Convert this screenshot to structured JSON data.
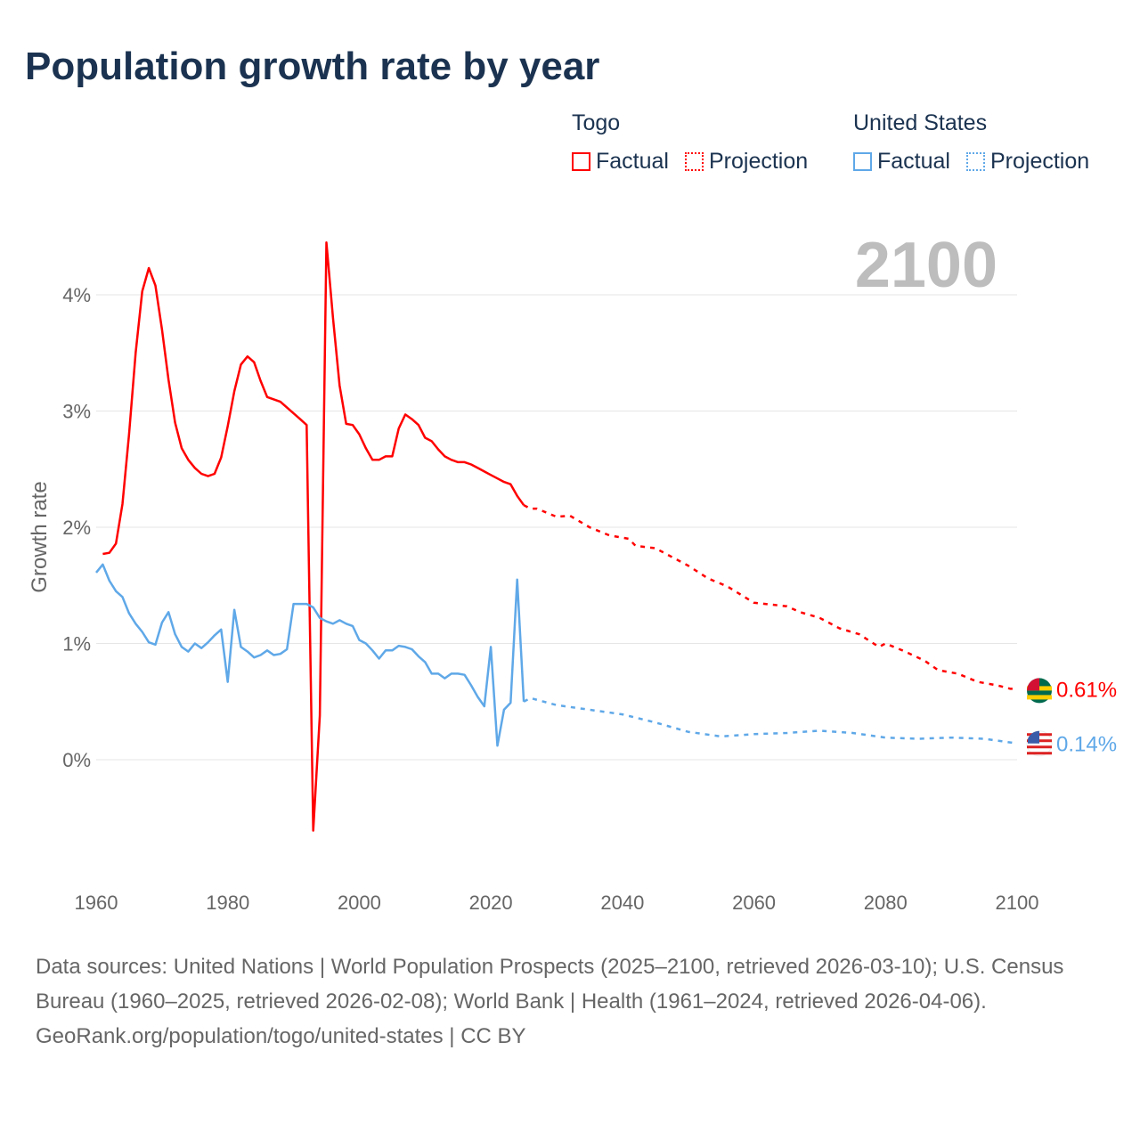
{
  "title": "Population growth rate by year",
  "legend": {
    "groups": [
      {
        "name": "Togo",
        "color": "#ff0000",
        "factual": "Factual",
        "projection": "Projection"
      },
      {
        "name": "United States",
        "color": "#5fa8e8",
        "factual": "Factual",
        "projection": "Projection"
      }
    ]
  },
  "chart_data": {
    "type": "line",
    "title": "Population growth rate by year",
    "xlabel": "",
    "ylabel": "Growth rate",
    "xlim": [
      1960,
      2100
    ],
    "ylim": [
      -1,
      4.5
    ],
    "x_ticks": [
      "1960",
      "1980",
      "2000",
      "2020",
      "2040",
      "2060",
      "2080",
      "2100"
    ],
    "y_ticks": [
      {
        "v": 0,
        "label": "0%"
      },
      {
        "v": 1,
        "label": "1%"
      },
      {
        "v": 2,
        "label": "2%"
      },
      {
        "v": 3,
        "label": "3%"
      },
      {
        "v": 4,
        "label": "4%"
      }
    ],
    "grid": true,
    "current_year_label": "2100",
    "series": [
      {
        "name": "Togo Factual",
        "color": "#ff0000",
        "dashed": false,
        "x": [
          1961,
          1962,
          1963,
          1964,
          1965,
          1966,
          1967,
          1968,
          1969,
          1970,
          1971,
          1972,
          1973,
          1974,
          1975,
          1976,
          1977,
          1978,
          1979,
          1980,
          1981,
          1982,
          1983,
          1984,
          1985,
          1986,
          1987,
          1988,
          1989,
          1990,
          1991,
          1992,
          1993,
          1994,
          1995,
          1996,
          1997,
          1998,
          1999,
          2000,
          2001,
          2002,
          2003,
          2004,
          2005,
          2006,
          2007,
          2008,
          2009,
          2010,
          2011,
          2012,
          2013,
          2014,
          2015,
          2016,
          2017,
          2018,
          2019,
          2020,
          2021,
          2022,
          2023,
          2024,
          2025
        ],
        "y": [
          1.77,
          1.78,
          1.86,
          2.2,
          2.8,
          3.5,
          4.03,
          4.23,
          4.08,
          3.7,
          3.27,
          2.9,
          2.68,
          2.58,
          2.51,
          2.46,
          2.44,
          2.46,
          2.6,
          2.87,
          3.17,
          3.4,
          3.47,
          3.42,
          3.26,
          3.12,
          3.1,
          3.08,
          3.03,
          2.98,
          2.93,
          2.88,
          -0.61,
          0.38,
          4.45,
          3.8,
          3.22,
          2.89,
          2.88,
          2.8,
          2.68,
          2.58,
          2.58,
          2.61,
          2.61,
          2.85,
          2.97,
          2.93,
          2.88,
          2.77,
          2.74,
          2.67,
          2.61,
          2.58,
          2.56,
          2.56,
          2.54,
          2.51,
          2.48,
          2.45,
          2.42,
          2.39,
          2.37,
          2.27,
          2.19
        ]
      },
      {
        "name": "Togo Projection",
        "color": "#ff0000",
        "dashed": true,
        "x": [
          2025,
          2026,
          2027,
          2030,
          2032,
          2035,
          2038,
          2041,
          2042,
          2045,
          2050,
          2053,
          2056,
          2060,
          2065,
          2067,
          2070,
          2073,
          2076,
          2079,
          2080,
          2083,
          2086,
          2088,
          2091,
          2094,
          2097,
          2099,
          2100
        ],
        "y": [
          2.19,
          2.16,
          2.16,
          2.09,
          2.1,
          2.0,
          1.93,
          1.9,
          1.84,
          1.82,
          1.67,
          1.56,
          1.49,
          1.35,
          1.32,
          1.27,
          1.22,
          1.13,
          1.08,
          0.97,
          1.0,
          0.93,
          0.85,
          0.77,
          0.74,
          0.67,
          0.64,
          0.61,
          0.61
        ]
      },
      {
        "name": "United States Factual",
        "color": "#5fa8e8",
        "dashed": false,
        "x": [
          1960,
          1961,
          1962,
          1963,
          1964,
          1965,
          1966,
          1967,
          1968,
          1969,
          1970,
          1971,
          1972,
          1973,
          1974,
          1975,
          1976,
          1977,
          1978,
          1979,
          1980,
          1981,
          1982,
          1983,
          1984,
          1985,
          1986,
          1987,
          1988,
          1989,
          1990,
          1991,
          1992,
          1993,
          1994,
          1995,
          1996,
          1997,
          1998,
          1999,
          2000,
          2001,
          2002,
          2003,
          2004,
          2005,
          2006,
          2007,
          2008,
          2009,
          2010,
          2011,
          2012,
          2013,
          2014,
          2015,
          2016,
          2017,
          2018,
          2019,
          2020,
          2021,
          2022,
          2023,
          2024,
          2025
        ],
        "y": [
          1.61,
          1.68,
          1.54,
          1.45,
          1.4,
          1.26,
          1.17,
          1.1,
          1.01,
          0.99,
          1.18,
          1.27,
          1.08,
          0.97,
          0.93,
          1.0,
          0.96,
          1.01,
          1.07,
          1.12,
          0.67,
          1.29,
          0.97,
          0.93,
          0.88,
          0.9,
          0.94,
          0.9,
          0.91,
          0.95,
          1.34,
          1.34,
          1.34,
          1.31,
          1.22,
          1.19,
          1.17,
          1.2,
          1.17,
          1.15,
          1.03,
          1.0,
          0.94,
          0.87,
          0.94,
          0.94,
          0.98,
          0.97,
          0.95,
          0.89,
          0.84,
          0.74,
          0.74,
          0.7,
          0.74,
          0.74,
          0.73,
          0.64,
          0.54,
          0.46,
          0.97,
          0.12,
          0.43,
          0.49,
          1.55,
          0.5
        ]
      },
      {
        "name": "United States Projection",
        "color": "#5fa8e8",
        "dashed": true,
        "x": [
          2025,
          2026,
          2030,
          2035,
          2040,
          2045,
          2050,
          2055,
          2060,
          2065,
          2070,
          2075,
          2080,
          2085,
          2090,
          2095,
          2100
        ],
        "y": [
          0.5,
          0.53,
          0.47,
          0.43,
          0.39,
          0.32,
          0.24,
          0.2,
          0.22,
          0.23,
          0.25,
          0.23,
          0.19,
          0.18,
          0.19,
          0.18,
          0.14
        ]
      }
    ],
    "end_labels": [
      {
        "country": "Togo",
        "label": "0.61%",
        "value": 0.61,
        "color": "#ff0000"
      },
      {
        "country": "United States",
        "label": "0.14%",
        "value": 0.14,
        "color": "#5fa8e8"
      }
    ]
  },
  "footer": {
    "sources": "Data sources: United Nations | World Population Prospects (2025–2100, retrieved 2026-03-10); U.S. Census Bureau (1960–2025, retrieved 2026-02-08); World Bank | Health (1961–2024, retrieved 2026-04-06).",
    "credit": "GeoRank.org/population/togo/united-states | CC BY"
  }
}
